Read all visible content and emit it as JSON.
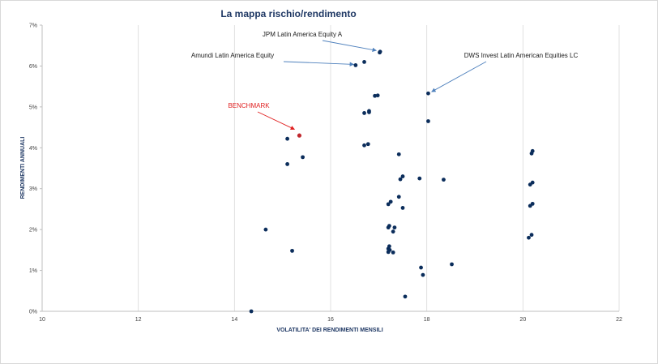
{
  "chart_data": {
    "type": "scatter",
    "title": "La mappa rischio/rendimento",
    "xlabel": "VOLATILITA' DEI RENDIMENTI MENSILI",
    "ylabel": "RENDIMENTI ANNUALI",
    "xlim": [
      10,
      22
    ],
    "ylim": [
      0,
      7
    ],
    "x_ticks": [
      10,
      12,
      14,
      16,
      18,
      20,
      22
    ],
    "y_ticks": [
      0,
      1,
      2,
      3,
      4,
      5,
      6,
      7
    ],
    "y_tick_labels": [
      "0%",
      "1%",
      "2%",
      "3%",
      "4%",
      "5%",
      "6%",
      "7%"
    ],
    "grid": "vertical",
    "legend": "none",
    "colors": {
      "points": "#0b2d5b",
      "benchmark": "#c0282e",
      "arrow": "#4f81bd",
      "benchmark_arrow": "#e02020",
      "grid": "#d9d9d9"
    },
    "series": [
      {
        "points": [
          [
            14.35,
            0.0
          ],
          [
            14.65,
            2.0
          ],
          [
            15.1,
            4.22
          ],
          [
            15.1,
            3.6
          ],
          [
            15.2,
            1.48
          ],
          [
            15.42,
            3.77
          ],
          [
            16.52,
            6.02
          ],
          [
            16.7,
            6.1
          ],
          [
            16.7,
            4.85
          ],
          [
            16.7,
            4.06
          ],
          [
            16.78,
            4.09
          ],
          [
            16.8,
            4.87
          ],
          [
            16.8,
            4.9
          ],
          [
            16.92,
            5.27
          ],
          [
            16.98,
            5.28
          ],
          [
            17.02,
            6.33
          ],
          [
            17.03,
            6.35
          ],
          [
            17.2,
            2.62
          ],
          [
            17.2,
            2.05
          ],
          [
            17.22,
            2.09
          ],
          [
            17.25,
            2.68
          ],
          [
            17.3,
            1.95
          ],
          [
            17.33,
            2.05
          ],
          [
            17.2,
            1.53
          ],
          [
            17.22,
            1.59
          ],
          [
            17.23,
            1.5
          ],
          [
            17.2,
            1.45
          ],
          [
            17.3,
            1.44
          ],
          [
            17.42,
            3.84
          ],
          [
            17.42,
            2.8
          ],
          [
            17.45,
            3.23
          ],
          [
            17.5,
            3.3
          ],
          [
            17.5,
            2.53
          ],
          [
            17.55,
            0.36
          ],
          [
            17.85,
            3.25
          ],
          [
            17.88,
            1.07
          ],
          [
            17.92,
            0.89
          ],
          [
            18.03,
            5.33
          ],
          [
            18.03,
            4.65
          ],
          [
            18.35,
            3.22
          ],
          [
            18.52,
            1.15
          ],
          [
            20.15,
            3.1
          ],
          [
            20.18,
            3.86
          ],
          [
            20.2,
            3.92
          ],
          [
            20.2,
            3.15
          ],
          [
            20.15,
            2.58
          ],
          [
            20.2,
            2.63
          ],
          [
            20.12,
            1.8
          ],
          [
            20.18,
            1.87
          ]
        ]
      },
      {
        "name": "BENCHMARK",
        "points": [
          [
            15.35,
            4.3
          ]
        ]
      }
    ],
    "annotations": [
      {
        "text": "JPM Latin America Equity A",
        "target": [
          16.95,
          6.38
        ]
      },
      {
        "text": "Amundi Latin America Equity",
        "target": [
          16.48,
          6.04
        ]
      },
      {
        "text": "DWS Invest Latin American Equities LC",
        "target": [
          18.1,
          5.37
        ]
      },
      {
        "text": "BENCHMARK",
        "target": [
          15.25,
          4.45
        ]
      }
    ]
  }
}
